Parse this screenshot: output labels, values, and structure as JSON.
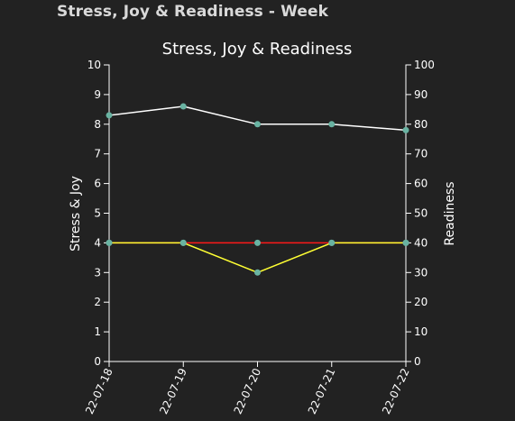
{
  "page": {
    "heading": "Stress, Joy & Readiness - Week"
  },
  "colors": {
    "background": "#222222",
    "axis": "#ffffff",
    "point": "#69b3a2",
    "readiness_line": "#ffffff",
    "stress_line": "#ff1a1a",
    "joy_line": "#ffff33"
  },
  "chart_data": {
    "type": "line",
    "title": "Stress, Joy & Readiness",
    "ylabel_left": "Stress & Joy",
    "ylabel_right": "Readiness",
    "xlabel": "",
    "x": [
      "22-07-18",
      "22-07-19",
      "22-07-20",
      "22-07-21",
      "22-07-22"
    ],
    "ylim_left": [
      0,
      10
    ],
    "ylim_right": [
      0,
      100
    ],
    "yticks_left": [
      "0",
      "1",
      "2",
      "3",
      "4",
      "5",
      "6",
      "7",
      "8",
      "9",
      "10"
    ],
    "yticks_right": [
      "0",
      "10",
      "20",
      "30",
      "40",
      "50",
      "60",
      "70",
      "80",
      "90",
      "100"
    ],
    "grid": false,
    "legend": "none",
    "series": [
      {
        "axis": "right",
        "color": "#ffffff",
        "values": [
          83,
          86,
          80,
          80,
          78
        ]
      },
      {
        "axis": "left",
        "color": "#ff1a1a",
        "values": [
          4,
          4,
          4,
          4,
          4
        ]
      },
      {
        "axis": "left",
        "color": "#ffff33",
        "values": [
          4,
          4,
          3,
          4,
          4
        ]
      }
    ]
  }
}
